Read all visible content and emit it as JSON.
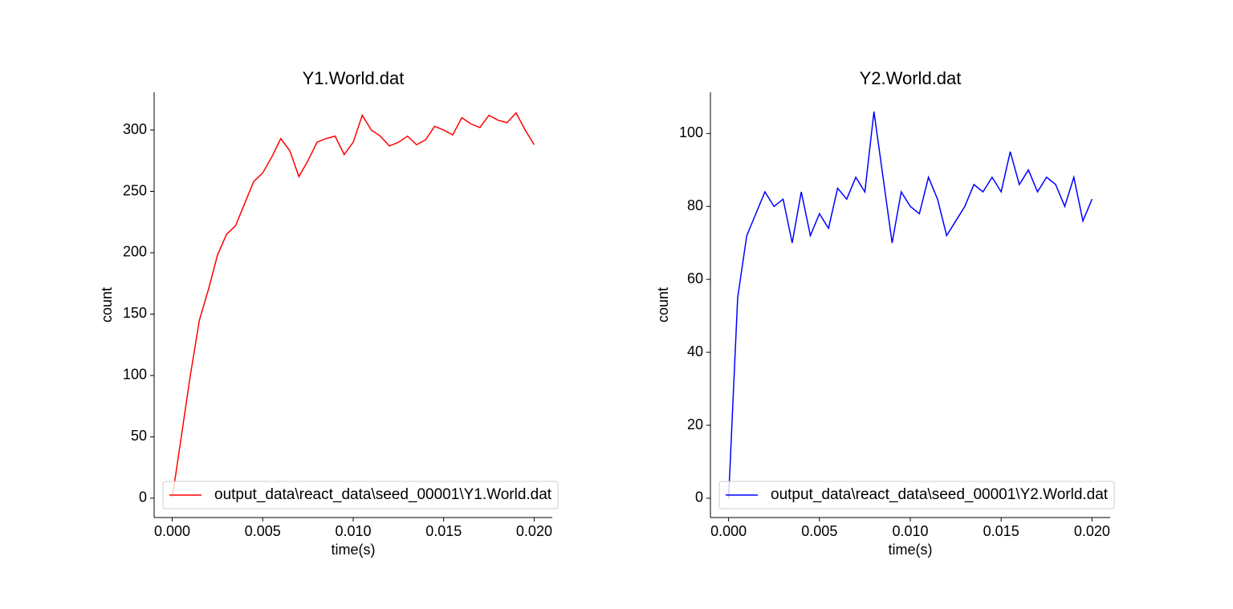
{
  "chart_data": [
    {
      "type": "line",
      "title": "Y1.World.dat",
      "xlabel": "time(s)",
      "ylabel": "count",
      "x": [
        0,
        0.0005,
        0.001,
        0.0015,
        0.002,
        0.0025,
        0.003,
        0.0035,
        0.004,
        0.0045,
        0.005,
        0.0055,
        0.006,
        0.0065,
        0.007,
        0.0075,
        0.008,
        0.0085,
        0.009,
        0.0095,
        0.01,
        0.0105,
        0.011,
        0.0115,
        0.012,
        0.0125,
        0.013,
        0.0135,
        0.014,
        0.0145,
        0.015,
        0.0155,
        0.016,
        0.0165,
        0.017,
        0.0175,
        0.018,
        0.0185,
        0.019,
        0.0195,
        0.02
      ],
      "series": [
        {
          "name": "output_data\\react_data\\seed_00001\\Y1.World.dat",
          "color": "#ff0000",
          "values": [
            0,
            50,
            100,
            145,
            170,
            198,
            215,
            222,
            240,
            258,
            265,
            278,
            293,
            283,
            262,
            275,
            290,
            293,
            295,
            280,
            290,
            312,
            300,
            295,
            287,
            290,
            295,
            288,
            292,
            303,
            300,
            296,
            310,
            305,
            302,
            312,
            308,
            306,
            314,
            300,
            288
          ]
        }
      ],
      "xlim": [
        -0.001,
        0.021
      ],
      "xticks": [
        {
          "value": 0,
          "label": "0.000"
        },
        {
          "value": 0.005,
          "label": "0.005"
        },
        {
          "value": 0.01,
          "label": "0.010"
        },
        {
          "value": 0.015,
          "label": "0.015"
        },
        {
          "value": 0.02,
          "label": "0.020"
        }
      ],
      "ylim": [
        -15.75,
        330.75
      ],
      "yticks": [
        0,
        50,
        100,
        150,
        200,
        250,
        300
      ],
      "legend": "lower left"
    },
    {
      "type": "line",
      "title": "Y2.World.dat",
      "xlabel": "time(s)",
      "ylabel": "count",
      "x": [
        0,
        0.0005,
        0.001,
        0.0015,
        0.002,
        0.0025,
        0.003,
        0.0035,
        0.004,
        0.0045,
        0.005,
        0.0055,
        0.006,
        0.0065,
        0.007,
        0.0075,
        0.008,
        0.0085,
        0.009,
        0.0095,
        0.01,
        0.0105,
        0.011,
        0.0115,
        0.012,
        0.0125,
        0.013,
        0.0135,
        0.014,
        0.0145,
        0.015,
        0.0155,
        0.016,
        0.0165,
        0.017,
        0.0175,
        0.018,
        0.0185,
        0.019,
        0.0195,
        0.02
      ],
      "series": [
        {
          "name": "output_data\\react_data\\seed_00001\\Y2.World.dat",
          "color": "#0000ff",
          "values": [
            0,
            55,
            72,
            78,
            84,
            80,
            82,
            70,
            84,
            72,
            78,
            74,
            85,
            82,
            88,
            84,
            106,
            88,
            70,
            84,
            80,
            78,
            88,
            82,
            72,
            76,
            80,
            86,
            84,
            88,
            84,
            95,
            86,
            90,
            84,
            88,
            86,
            80,
            88,
            76,
            82
          ]
        }
      ],
      "xlim": [
        -0.001,
        0.021
      ],
      "xticks": [
        {
          "value": 0,
          "label": "0.000"
        },
        {
          "value": 0.005,
          "label": "0.005"
        },
        {
          "value": 0.01,
          "label": "0.010"
        },
        {
          "value": 0.015,
          "label": "0.015"
        },
        {
          "value": 0.02,
          "label": "0.020"
        }
      ],
      "ylim": [
        -5.3,
        111.3
      ],
      "yticks": [
        0,
        20,
        40,
        60,
        80,
        100
      ],
      "legend": "lower left"
    }
  ]
}
